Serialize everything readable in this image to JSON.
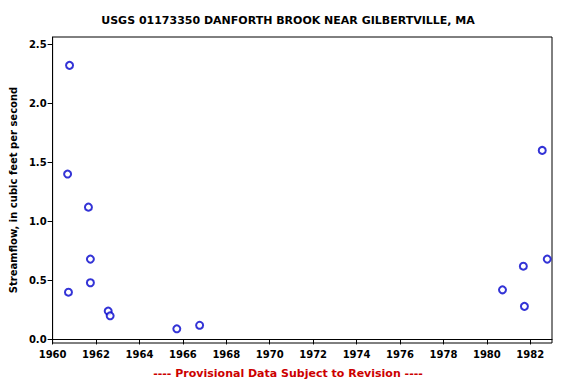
{
  "chart_data": {
    "type": "scatter",
    "title": "USGS 01173350 DANFORTH BROOK NEAR GILBERTVILLE, MA",
    "y_label": "Streamflow, in cubic feet per second",
    "footer": "---- Provisional Data Subject to Revision ----",
    "x": [
      1960.69,
      1960.78,
      1960.73,
      1961.65,
      1961.74,
      1961.74,
      1962.56,
      1962.65,
      1965.72,
      1966.77,
      1980.72,
      1981.68,
      1981.73,
      1982.55,
      1982.78
    ],
    "values": [
      1.4,
      2.32,
      0.4,
      1.12,
      0.68,
      0.48,
      0.24,
      0.2,
      0.09,
      0.12,
      0.42,
      0.62,
      0.28,
      1.6,
      0.68
    ],
    "color": "#0000cc",
    "marker": "open_circle",
    "xlim": [
      1960,
      1983
    ],
    "xticks": [
      1960,
      1962,
      1964,
      1966,
      1968,
      1970,
      1972,
      1974,
      1976,
      1978,
      1980,
      1982
    ],
    "ylim": [
      -0.03,
      2.56
    ],
    "yticks": [
      {
        "value": 0,
        "label": "0.0"
      },
      {
        "value": 0.5,
        "label": "0.5"
      },
      {
        "value": 1,
        "label": "1.0"
      },
      {
        "value": 1.5,
        "label": "1.5"
      },
      {
        "value": 2,
        "label": "2.0"
      },
      {
        "value": 2.5,
        "label": "2.5"
      }
    ],
    "grid": false
  }
}
